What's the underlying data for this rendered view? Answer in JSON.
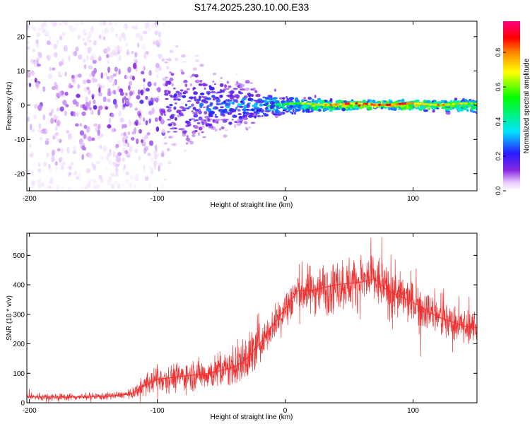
{
  "title": "S174.2025.230.10.00.E33",
  "chart_data": [
    {
      "type": "heatmap",
      "name": "spectrogram",
      "xlabel": "Height of straight line (km)",
      "ylabel": "Frequency (Hz)",
      "xlim": [
        -202,
        150
      ],
      "ylim": [
        -25,
        24.5
      ],
      "xticks": [
        -200,
        -100,
        0,
        100
      ],
      "yticks": [
        -20,
        -10,
        0,
        10,
        20
      ],
      "colorbar": {
        "label": "Normalized spectral amplitude",
        "range": [
          0,
          0.98
        ],
        "ticks": [
          "0.0",
          "0.2",
          "0.4",
          "0.6",
          "0.8"
        ],
        "colormap": "rainbow (violet → blue → cyan → green → yellow → red → magenta)"
      },
      "description_points": [
        {
          "x": -200,
          "spread_hz": 25,
          "peak_amplitude": 0.12
        },
        {
          "x": -120,
          "spread_hz": 20,
          "peak_amplitude": 0.15
        },
        {
          "x": -70,
          "spread_hz": 10,
          "peak_amplitude": 0.3
        },
        {
          "x": -30,
          "spread_hz": 5,
          "peak_amplitude": 0.4
        },
        {
          "x": 0,
          "spread_hz": 2,
          "peak_amplitude": 0.6
        },
        {
          "x": 50,
          "spread_hz": 1,
          "peak_amplitude": 0.9
        },
        {
          "x": 100,
          "spread_hz": 1,
          "peak_amplitude": 0.9
        },
        {
          "x": 150,
          "spread_hz": 1.5,
          "peak_amplitude": 0.7
        }
      ]
    },
    {
      "type": "line",
      "name": "snr",
      "xlabel": "Height of straight line (km)",
      "ylabel": "SNR (10 * v/v)",
      "xlim": [
        -202,
        150
      ],
      "ylim": [
        0,
        575
      ],
      "xticks": [
        -200,
        -100,
        0,
        100
      ],
      "yticks": [
        0,
        100,
        200,
        300,
        400,
        500
      ],
      "color": "#ee3333",
      "x": [
        -200,
        -180,
        -160,
        -140,
        -120,
        -110,
        -100,
        -80,
        -60,
        -40,
        -30,
        -20,
        -10,
        0,
        10,
        20,
        40,
        60,
        70,
        80,
        100,
        120,
        140,
        150
      ],
      "y": [
        20,
        20,
        20,
        22,
        30,
        60,
        80,
        90,
        100,
        120,
        150,
        200,
        260,
        320,
        380,
        380,
        400,
        410,
        420,
        380,
        340,
        290,
        260,
        255
      ]
    }
  ]
}
